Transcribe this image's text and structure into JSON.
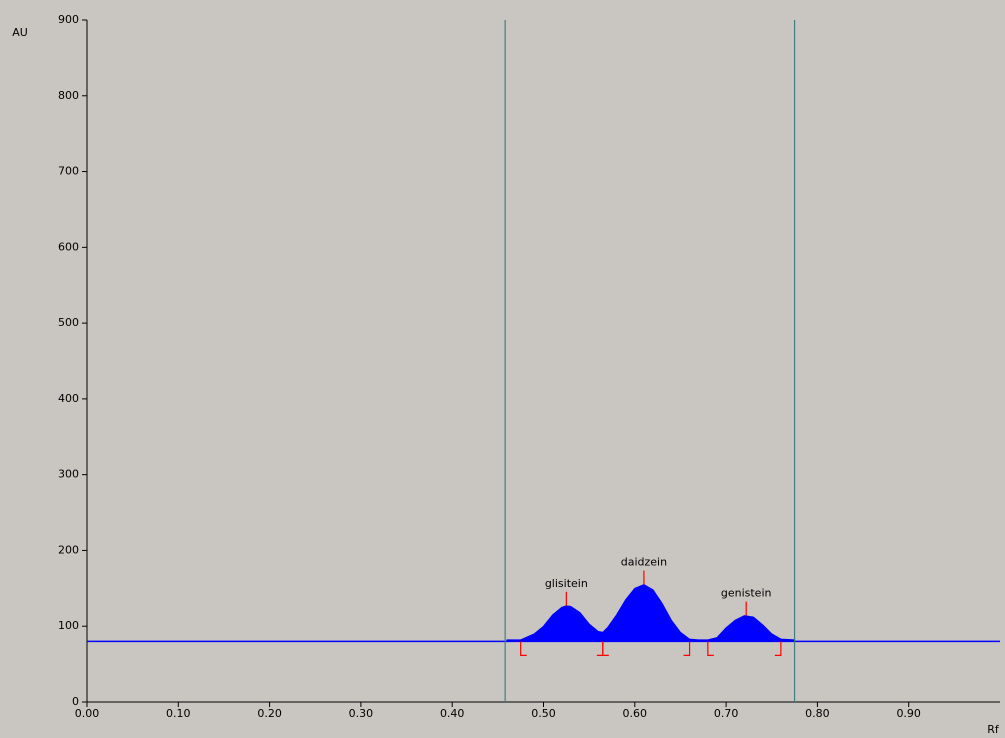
{
  "chart_data": {
    "type": "area",
    "ylabel": "AU",
    "xlabel": "Rf",
    "xlim": [
      0,
      1
    ],
    "ylim": [
      0,
      900
    ],
    "xticks": [
      {
        "value": 0,
        "label": "0.00"
      },
      {
        "value": 0.1,
        "label": "0.10"
      },
      {
        "value": 0.2,
        "label": "0.20"
      },
      {
        "value": 0.3,
        "label": "0.30"
      },
      {
        "value": 0.4,
        "label": "0.40"
      },
      {
        "value": 0.5,
        "label": "0.50"
      },
      {
        "value": 0.6,
        "label": "0.60"
      },
      {
        "value": 0.7,
        "label": "0.70"
      },
      {
        "value": 0.8,
        "label": "0.80"
      },
      {
        "value": 0.9,
        "label": "0.90"
      }
    ],
    "yticks": [
      0,
      100,
      200,
      300,
      400,
      500,
      600,
      700,
      800,
      900
    ],
    "baseline": 80,
    "baseline_color": "#0000ff",
    "markers": [
      0.458,
      0.775
    ],
    "marker_color": "#3f7f7f",
    "series": [
      {
        "color": "#0000ff",
        "x": [
          0.46,
          0.475,
          0.49,
          0.5,
          0.51,
          0.52,
          0.525,
          0.53,
          0.54,
          0.55,
          0.56,
          0.565,
          0.57,
          0.58,
          0.59,
          0.6,
          0.61,
          0.62,
          0.63,
          0.64,
          0.65,
          0.66,
          0.67,
          0.68,
          0.69,
          0.7,
          0.71,
          0.72,
          0.73,
          0.74,
          0.75,
          0.76,
          0.775
        ],
        "values": [
          82,
          82,
          90,
          100,
          115,
          125,
          127,
          126,
          118,
          103,
          93,
          92,
          98,
          115,
          135,
          150,
          155,
          148,
          130,
          108,
          92,
          83,
          82,
          82,
          85,
          98,
          108,
          114,
          112,
          102,
          90,
          83,
          82
        ]
      }
    ],
    "peaks": [
      {
        "label": "glisitein",
        "x": 0.525,
        "y": 127,
        "start": 0.475,
        "end": 0.565
      },
      {
        "label": "daidzein",
        "x": 0.61,
        "y": 155,
        "start": 0.565,
        "end": 0.66
      },
      {
        "label": "genistein",
        "x": 0.722,
        "y": 114,
        "start": 0.68,
        "end": 0.76
      }
    ],
    "peak_mark_color": "#ff0000"
  }
}
